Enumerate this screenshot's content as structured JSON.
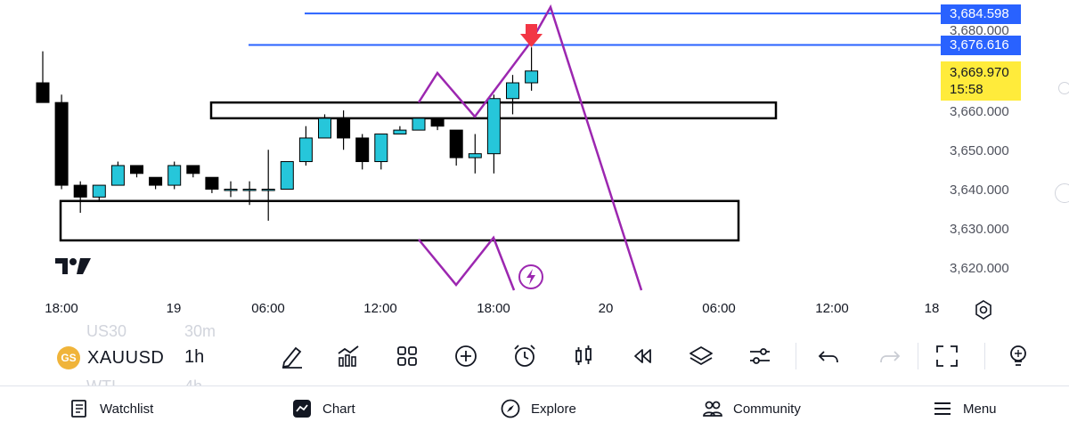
{
  "chart": {
    "price_ticks": [
      "3,680.000",
      "3,660.000",
      "3,650.000",
      "3,640.000",
      "3,630.000",
      "3,620.000"
    ],
    "time_labels": [
      "18:00",
      "19",
      "06:00",
      "12:00",
      "18:00",
      "20",
      "06:00",
      "12:00",
      "18"
    ],
    "price_tags": {
      "line1": "3,684.598",
      "line2": "3,676.616",
      "last_price": "3,669.970",
      "countdown": "15:58"
    },
    "colors": {
      "up": "#26c6da",
      "down": "#000000",
      "hline": "#2962ff",
      "zigzag": "#9c27b0",
      "arrow": "#f23645",
      "last_price_bg": "#ffeb3b"
    },
    "logo_text": "17",
    "lightning_icon": "lightning-icon"
  },
  "chart_data": {
    "type": "candlestick",
    "ylim": [
      3615,
      3690
    ],
    "candles": [
      {
        "o": 3667,
        "h": 3675,
        "l": 3662,
        "c": 3662
      },
      {
        "o": 3662,
        "h": 3664,
        "l": 3640,
        "c": 3641
      },
      {
        "o": 3641,
        "h": 3642,
        "l": 3634,
        "c": 3638
      },
      {
        "o": 3638,
        "h": 3641,
        "l": 3637,
        "c": 3641
      },
      {
        "o": 3641,
        "h": 3647,
        "l": 3641,
        "c": 3646
      },
      {
        "o": 3646,
        "h": 3646,
        "l": 3643,
        "c": 3644
      },
      {
        "o": 3643,
        "h": 3643,
        "l": 3640,
        "c": 3641
      },
      {
        "o": 3641,
        "h": 3647,
        "l": 3640,
        "c": 3646
      },
      {
        "o": 3646,
        "h": 3646,
        "l": 3643,
        "c": 3644
      },
      {
        "o": 3643,
        "h": 3643,
        "l": 3639,
        "c": 3640
      },
      {
        "o": 3640,
        "h": 3642,
        "l": 3638,
        "c": 3640
      },
      {
        "o": 3640,
        "h": 3642,
        "l": 3636,
        "c": 3640
      },
      {
        "o": 3640,
        "h": 3650,
        "l": 3632,
        "c": 3640
      },
      {
        "o": 3640,
        "h": 3647,
        "l": 3640,
        "c": 3647
      },
      {
        "o": 3647,
        "h": 3656,
        "l": 3646,
        "c": 3653
      },
      {
        "o": 3653,
        "h": 3659,
        "l": 3653,
        "c": 3658
      },
      {
        "o": 3658,
        "h": 3660,
        "l": 3650,
        "c": 3653
      },
      {
        "o": 3653,
        "h": 3654,
        "l": 3645,
        "c": 3647
      },
      {
        "o": 3647,
        "h": 3654,
        "l": 3645,
        "c": 3654
      },
      {
        "o": 3654,
        "h": 3656,
        "l": 3654,
        "c": 3655
      },
      {
        "o": 3655,
        "h": 3658,
        "l": 3655,
        "c": 3658
      },
      {
        "o": 3658,
        "h": 3658,
        "l": 3655,
        "c": 3656
      },
      {
        "o": 3655,
        "h": 3655,
        "l": 3646,
        "c": 3648
      },
      {
        "o": 3648,
        "h": 3654,
        "l": 3644,
        "c": 3649
      },
      {
        "o": 3649,
        "h": 3664,
        "l": 3644,
        "c": 3663
      },
      {
        "o": 3663,
        "h": 3669,
        "l": 3659,
        "c": 3667
      },
      {
        "o": 3667,
        "h": 3676,
        "l": 3665,
        "c": 3670
      }
    ],
    "horizontal_lines": [
      3684.598,
      3676.616
    ],
    "zones": [
      {
        "top": 3662,
        "bottom": 3658
      },
      {
        "top": 3637,
        "bottom": 3627
      }
    ]
  },
  "toolbar": {
    "ghost_above_symbol": "US30",
    "ghost_above_interval": "30m",
    "ghost_below_symbol": "WTI",
    "ghost_below_interval": "4h",
    "symbol": "XAUUSD",
    "interval": "1h",
    "symbol_logo_text": "GS"
  },
  "nav": {
    "watchlist": "Watchlist",
    "chart": "Chart",
    "explore": "Explore",
    "community": "Community",
    "menu": "Menu"
  }
}
